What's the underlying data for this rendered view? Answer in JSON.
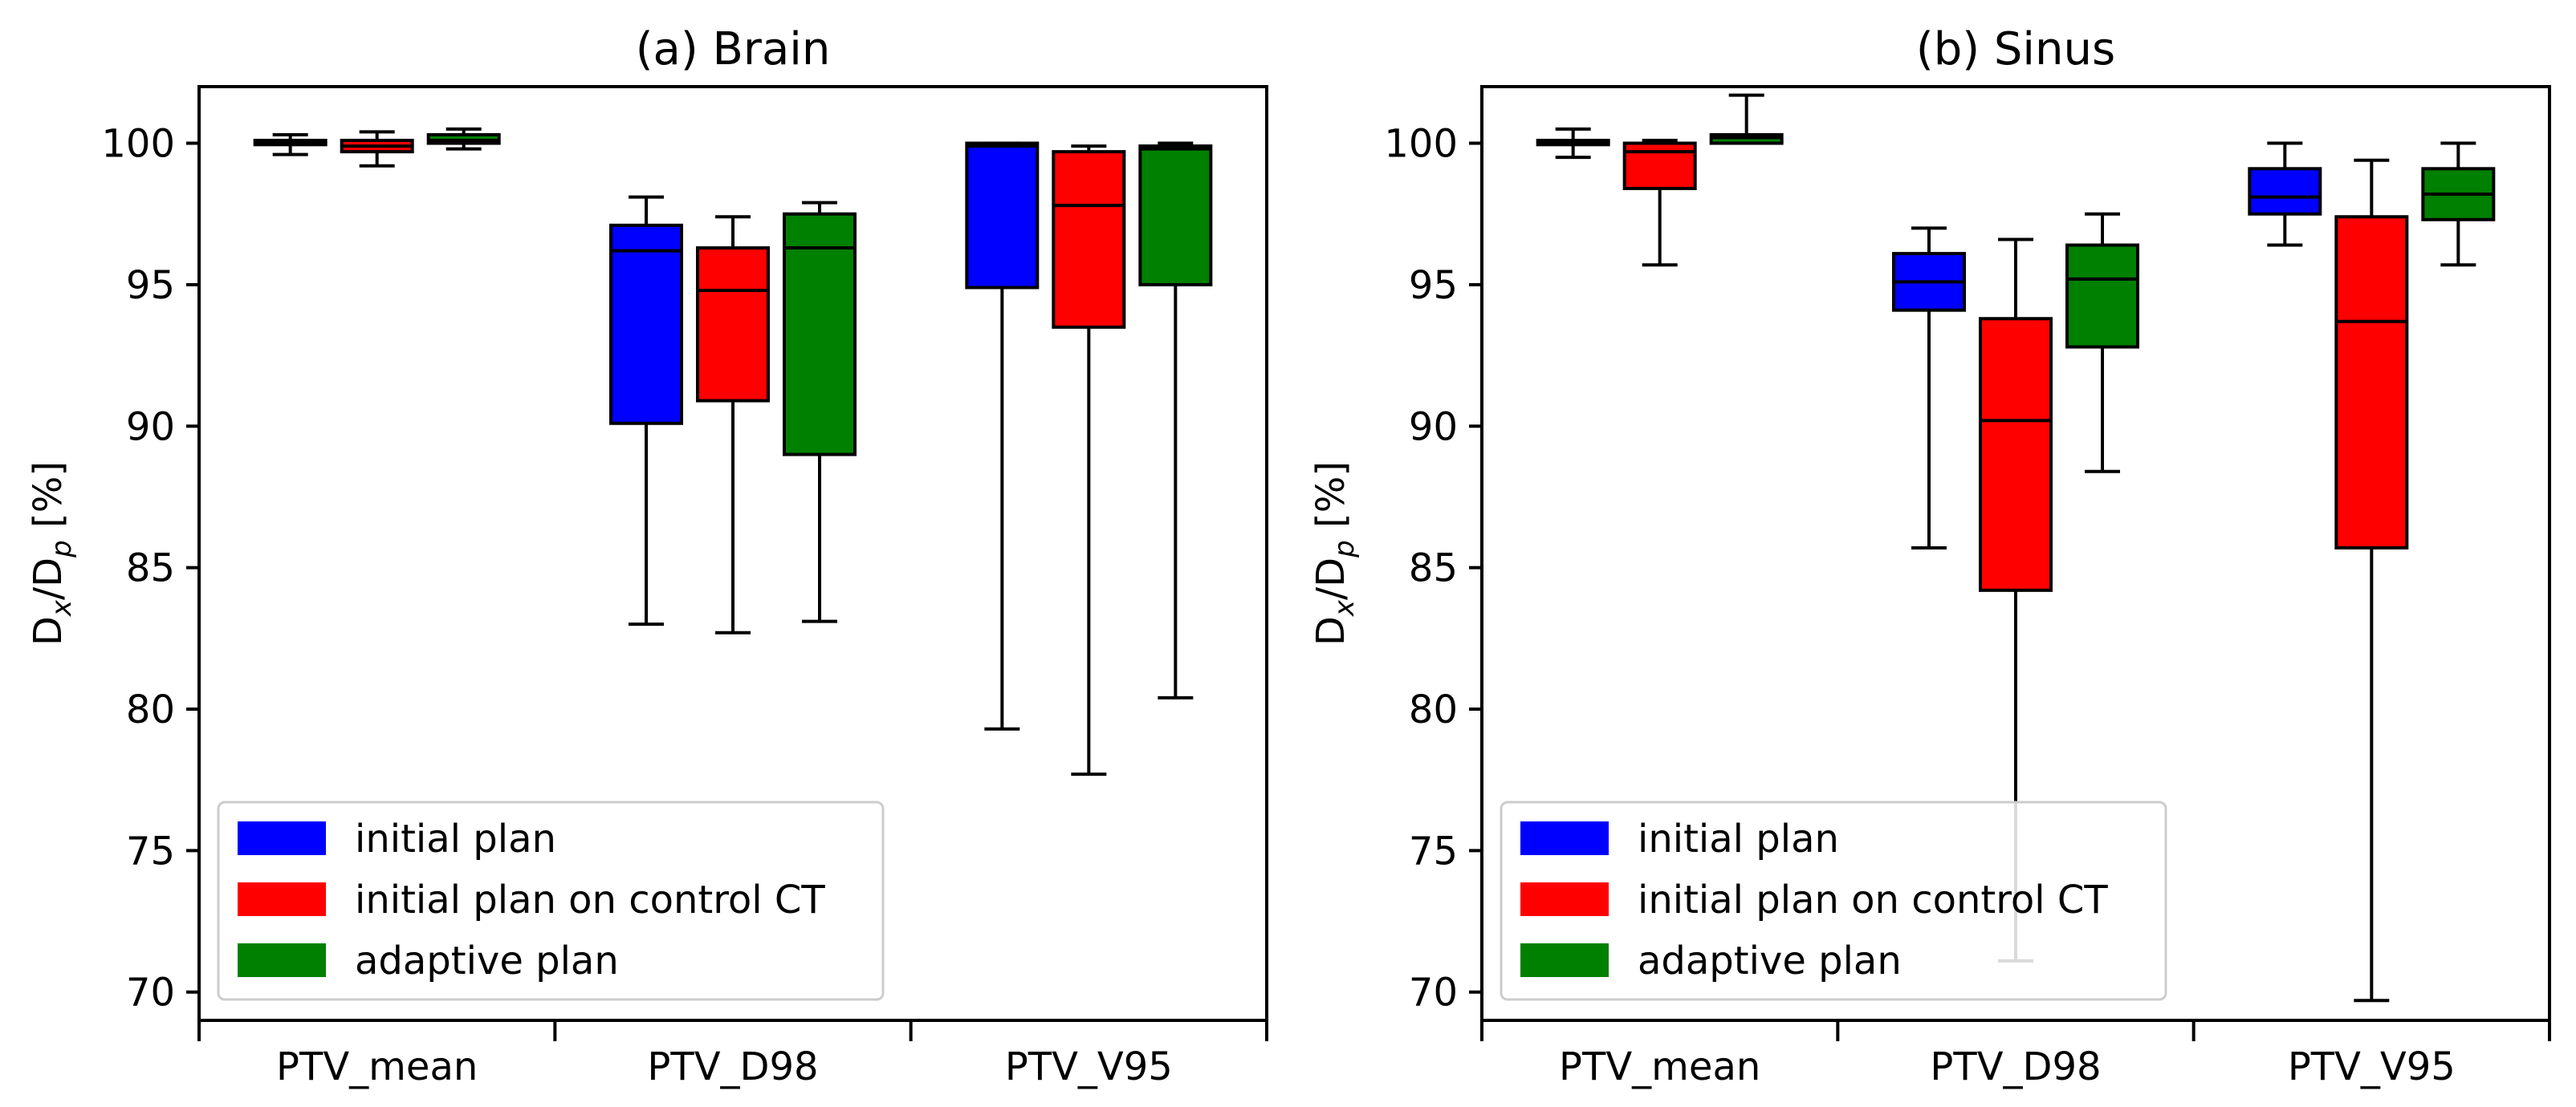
{
  "legend_labels": [
    "initial plan",
    "initial plan on control CT",
    "adaptive plan"
  ],
  "series_colors": [
    "#0000ff",
    "#ff0000",
    "#008000"
  ],
  "chart_data": [
    {
      "type": "box",
      "title": "(a) Brain",
      "ylabel_main": "D",
      "ylabel_sub1": "x",
      "ylabel_mid": "/D",
      "ylabel_sub2": "p",
      "ylabel_tail": " [%]",
      "ylim": [
        69,
        102
      ],
      "yticks": [
        70,
        75,
        80,
        85,
        90,
        95,
        100
      ],
      "categories": [
        "PTV_mean",
        "PTV_D98",
        "PTV_V95"
      ],
      "legend_position": "lower-left",
      "series": [
        {
          "name": "initial plan",
          "boxes": [
            {
              "whislo": 99.6,
              "q1": 99.95,
              "med": 100.0,
              "q3": 100.1,
              "whishi": 100.3
            },
            {
              "whislo": 83.0,
              "q1": 90.1,
              "med": 96.2,
              "q3": 97.1,
              "whishi": 98.1
            },
            {
              "whislo": 79.3,
              "q1": 94.9,
              "med": 99.9,
              "q3": 100.0,
              "whishi": 100.0
            }
          ]
        },
        {
          "name": "initial plan on control CT",
          "boxes": [
            {
              "whislo": 99.2,
              "q1": 99.7,
              "med": 99.9,
              "q3": 100.1,
              "whishi": 100.4
            },
            {
              "whislo": 82.7,
              "q1": 90.9,
              "med": 94.8,
              "q3": 96.3,
              "whishi": 97.4
            },
            {
              "whislo": 77.7,
              "q1": 93.5,
              "med": 97.8,
              "q3": 99.7,
              "whishi": 99.9
            }
          ]
        },
        {
          "name": "adaptive plan",
          "boxes": [
            {
              "whislo": 99.8,
              "q1": 100.0,
              "med": 100.1,
              "q3": 100.3,
              "whishi": 100.5
            },
            {
              "whislo": 83.1,
              "q1": 89.0,
              "med": 96.3,
              "q3": 97.5,
              "whishi": 97.9
            },
            {
              "whislo": 80.4,
              "q1": 95.0,
              "med": 99.8,
              "q3": 99.9,
              "whishi": 100.0
            }
          ]
        }
      ]
    },
    {
      "type": "box",
      "title": "(b) Sinus",
      "ylabel_main": "D",
      "ylabel_sub1": "x",
      "ylabel_mid": "/D",
      "ylabel_sub2": "p",
      "ylabel_tail": " [%]",
      "ylim": [
        69,
        102
      ],
      "yticks": [
        70,
        75,
        80,
        85,
        90,
        95,
        100
      ],
      "categories": [
        "PTV_mean",
        "PTV_D98",
        "PTV_V95"
      ],
      "legend_position": "lower-left",
      "series": [
        {
          "name": "initial plan",
          "boxes": [
            {
              "whislo": 99.5,
              "q1": 99.95,
              "med": 100.0,
              "q3": 100.1,
              "whishi": 100.5
            },
            {
              "whislo": 85.7,
              "q1": 94.1,
              "med": 95.1,
              "q3": 96.1,
              "whishi": 97.0
            },
            {
              "whislo": 96.4,
              "q1": 97.5,
              "med": 98.1,
              "q3": 99.1,
              "whishi": 100.0
            }
          ]
        },
        {
          "name": "initial plan on control CT",
          "boxes": [
            {
              "whislo": 95.7,
              "q1": 98.4,
              "med": 99.7,
              "q3": 100.0,
              "whishi": 100.1
            },
            {
              "whislo": 71.1,
              "q1": 84.2,
              "med": 90.2,
              "q3": 93.8,
              "whishi": 96.6
            },
            {
              "whislo": 69.7,
              "q1": 85.7,
              "med": 93.7,
              "q3": 97.4,
              "whishi": 99.4
            }
          ]
        },
        {
          "name": "adaptive plan",
          "boxes": [
            {
              "whislo": 100.0,
              "q1": 100.0,
              "med": 100.2,
              "q3": 100.3,
              "whishi": 101.7
            },
            {
              "whislo": 88.4,
              "q1": 92.8,
              "med": 95.2,
              "q3": 96.4,
              "whishi": 97.5
            },
            {
              "whislo": 95.7,
              "q1": 97.3,
              "med": 98.2,
              "q3": 99.1,
              "whishi": 100.0
            }
          ]
        }
      ]
    }
  ]
}
